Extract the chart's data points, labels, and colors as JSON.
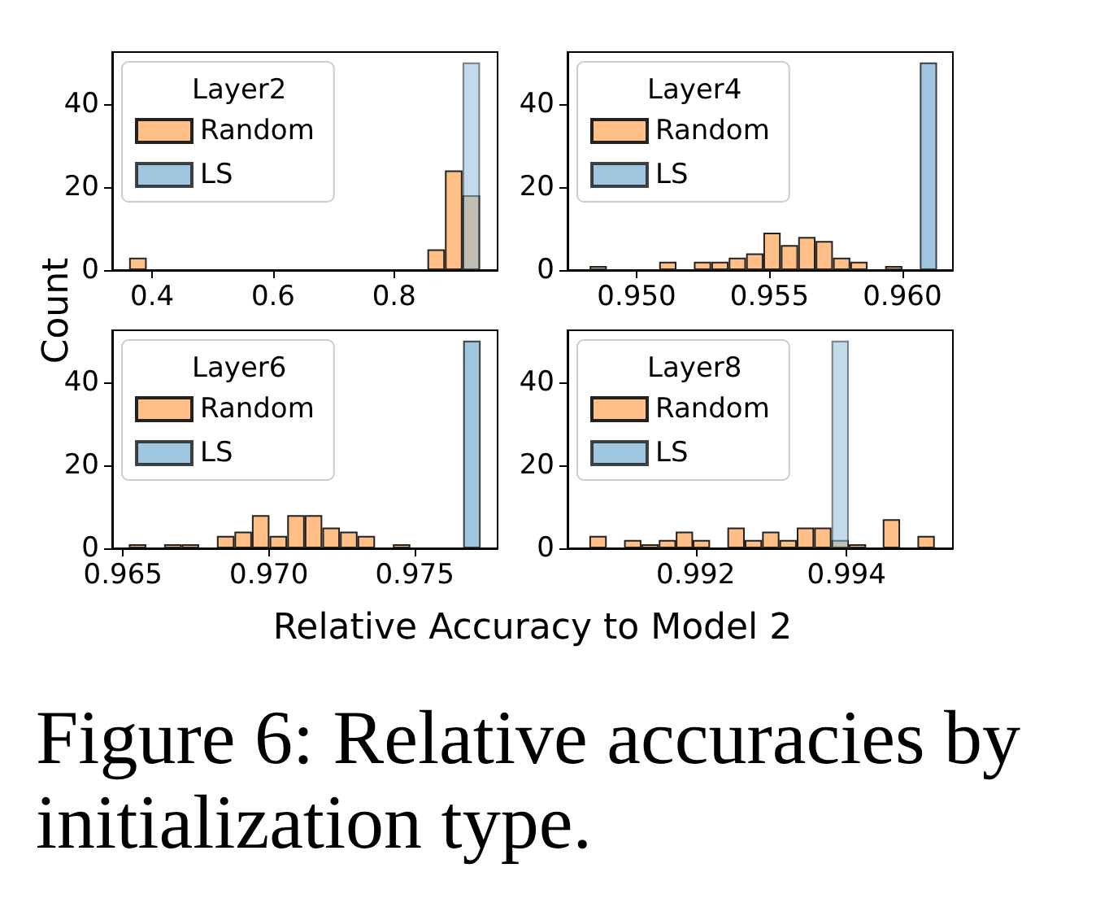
{
  "chart_data": [
    {
      "type": "histogram",
      "ylabel": "Count",
      "legend_title": "Layer2",
      "legend": "top left",
      "xlim": [
        0.334,
        0.971
      ],
      "ylim": [
        0,
        52.5
      ],
      "xticks": [
        0.4,
        0.6,
        0.8
      ],
      "yticks": [
        0,
        20,
        40
      ],
      "bins": [
        0.362,
        0.391,
        0.42,
        0.449,
        0.478,
        0.507,
        0.536,
        0.565,
        0.594,
        0.623,
        0.652,
        0.681,
        0.71,
        0.739,
        0.768,
        0.797,
        0.826,
        0.855,
        0.884,
        0.913,
        0.942
      ],
      "series": [
        {
          "name": "Random",
          "color": "#ffbf86",
          "values": [
            3,
            0,
            0,
            0,
            0,
            0,
            0,
            0,
            0,
            0,
            0,
            0,
            0,
            0,
            0,
            0,
            0,
            5,
            24,
            18
          ]
        },
        {
          "name": "LS",
          "color": "#8fbbd9",
          "values": [
            0,
            0,
            0,
            0,
            0,
            0,
            0,
            0,
            0,
            0,
            0,
            0,
            0,
            0,
            0,
            0,
            0,
            0,
            0,
            50
          ]
        }
      ]
    },
    {
      "type": "histogram",
      "legend_title": "Layer4",
      "legend": "top left",
      "xlim": [
        0.9474,
        0.9619
      ],
      "ylim": [
        0,
        52.5
      ],
      "xticks": [
        {
          "value": 0.95,
          "label": "0.950"
        },
        0.955,
        {
          "value": 0.96,
          "label": "0.960"
        }
      ],
      "yticks": [
        0,
        20,
        40
      ],
      "bins": [
        0.94823,
        0.94888,
        0.94954,
        0.95019,
        0.95085,
        0.9515,
        0.95215,
        0.95281,
        0.95346,
        0.95412,
        0.95477,
        0.95542,
        0.95608,
        0.95673,
        0.95739,
        0.95804,
        0.95869,
        0.95935,
        0.96,
        0.96065,
        0.96131
      ],
      "series": [
        {
          "name": "Random",
          "color": "#ffbf86",
          "values": [
            1,
            0,
            0,
            0,
            2,
            0,
            2,
            2,
            3,
            4,
            9,
            6,
            8,
            7,
            3,
            2,
            0,
            1,
            0,
            0
          ]
        },
        {
          "name": "LS",
          "color": "#8fbbd9",
          "values": [
            0,
            0,
            0,
            0,
            0,
            0,
            0,
            0,
            0,
            0,
            0,
            0,
            0,
            0,
            0,
            0,
            0,
            0,
            0,
            50
          ]
        }
      ]
    },
    {
      "type": "histogram",
      "xlabel": "Relative Accuracy to Model 2",
      "legend_title": "Layer6",
      "legend": "top left",
      "xlim": [
        0.96463,
        0.97784
      ],
      "ylim": [
        0,
        52.5
      ],
      "xticks": [
        0.965,
        {
          "value": 0.97,
          "label": "0.970"
        },
        0.975
      ],
      "yticks": [
        0,
        20,
        40
      ],
      "bins": [
        0.9652,
        0.9658,
        0.96641,
        0.96701,
        0.96761,
        0.96822,
        0.96882,
        0.96942,
        0.97002,
        0.97063,
        0.97123,
        0.97183,
        0.97244,
        0.97304,
        0.97364,
        0.97425,
        0.97485,
        0.97545,
        0.97606,
        0.97666,
        0.97726
      ],
      "series": [
        {
          "name": "Random",
          "color": "#ffbf86",
          "values": [
            1,
            0,
            1,
            1,
            0,
            3,
            4,
            8,
            3,
            8,
            8,
            5,
            4,
            3,
            0,
            1,
            0,
            0,
            0,
            0
          ]
        },
        {
          "name": "LS",
          "color": "#8fbbd9",
          "values": [
            0,
            0,
            0,
            0,
            0,
            0,
            0,
            0,
            0,
            0,
            0,
            0,
            0,
            0,
            0,
            0,
            0,
            0,
            0,
            50
          ]
        }
      ]
    },
    {
      "type": "histogram",
      "legend_title": "Layer8",
      "legend": "top left",
      "xlim": [
        0.9903,
        0.99541
      ],
      "ylim": [
        0,
        52.5
      ],
      "xticks": [
        0.992,
        0.994
      ],
      "yticks": [
        0,
        20,
        40
      ],
      "annotations": [
        "Figure 6: Relative accuracies by initialization type."
      ],
      "bins": [
        0.99059,
        0.99082,
        0.99105,
        0.99128,
        0.99151,
        0.99174,
        0.99196,
        0.99219,
        0.99242,
        0.99265,
        0.99288,
        0.99311,
        0.99334,
        0.99357,
        0.9938,
        0.99403,
        0.99426,
        0.99448,
        0.99471,
        0.99494,
        0.99517
      ],
      "series": [
        {
          "name": "Random",
          "color": "#ffbf86",
          "values": [
            3,
            0,
            2,
            1,
            2,
            4,
            2,
            0,
            5,
            2,
            4,
            2,
            5,
            5,
            2,
            1,
            0,
            7,
            0,
            3
          ]
        },
        {
          "name": "LS",
          "color": "#8fbbd9",
          "values": [
            0,
            0,
            0,
            0,
            0,
            0,
            0,
            0,
            0,
            0,
            0,
            0,
            0,
            0,
            50,
            0,
            0,
            0,
            0,
            0
          ]
        }
      ]
    }
  ]
}
